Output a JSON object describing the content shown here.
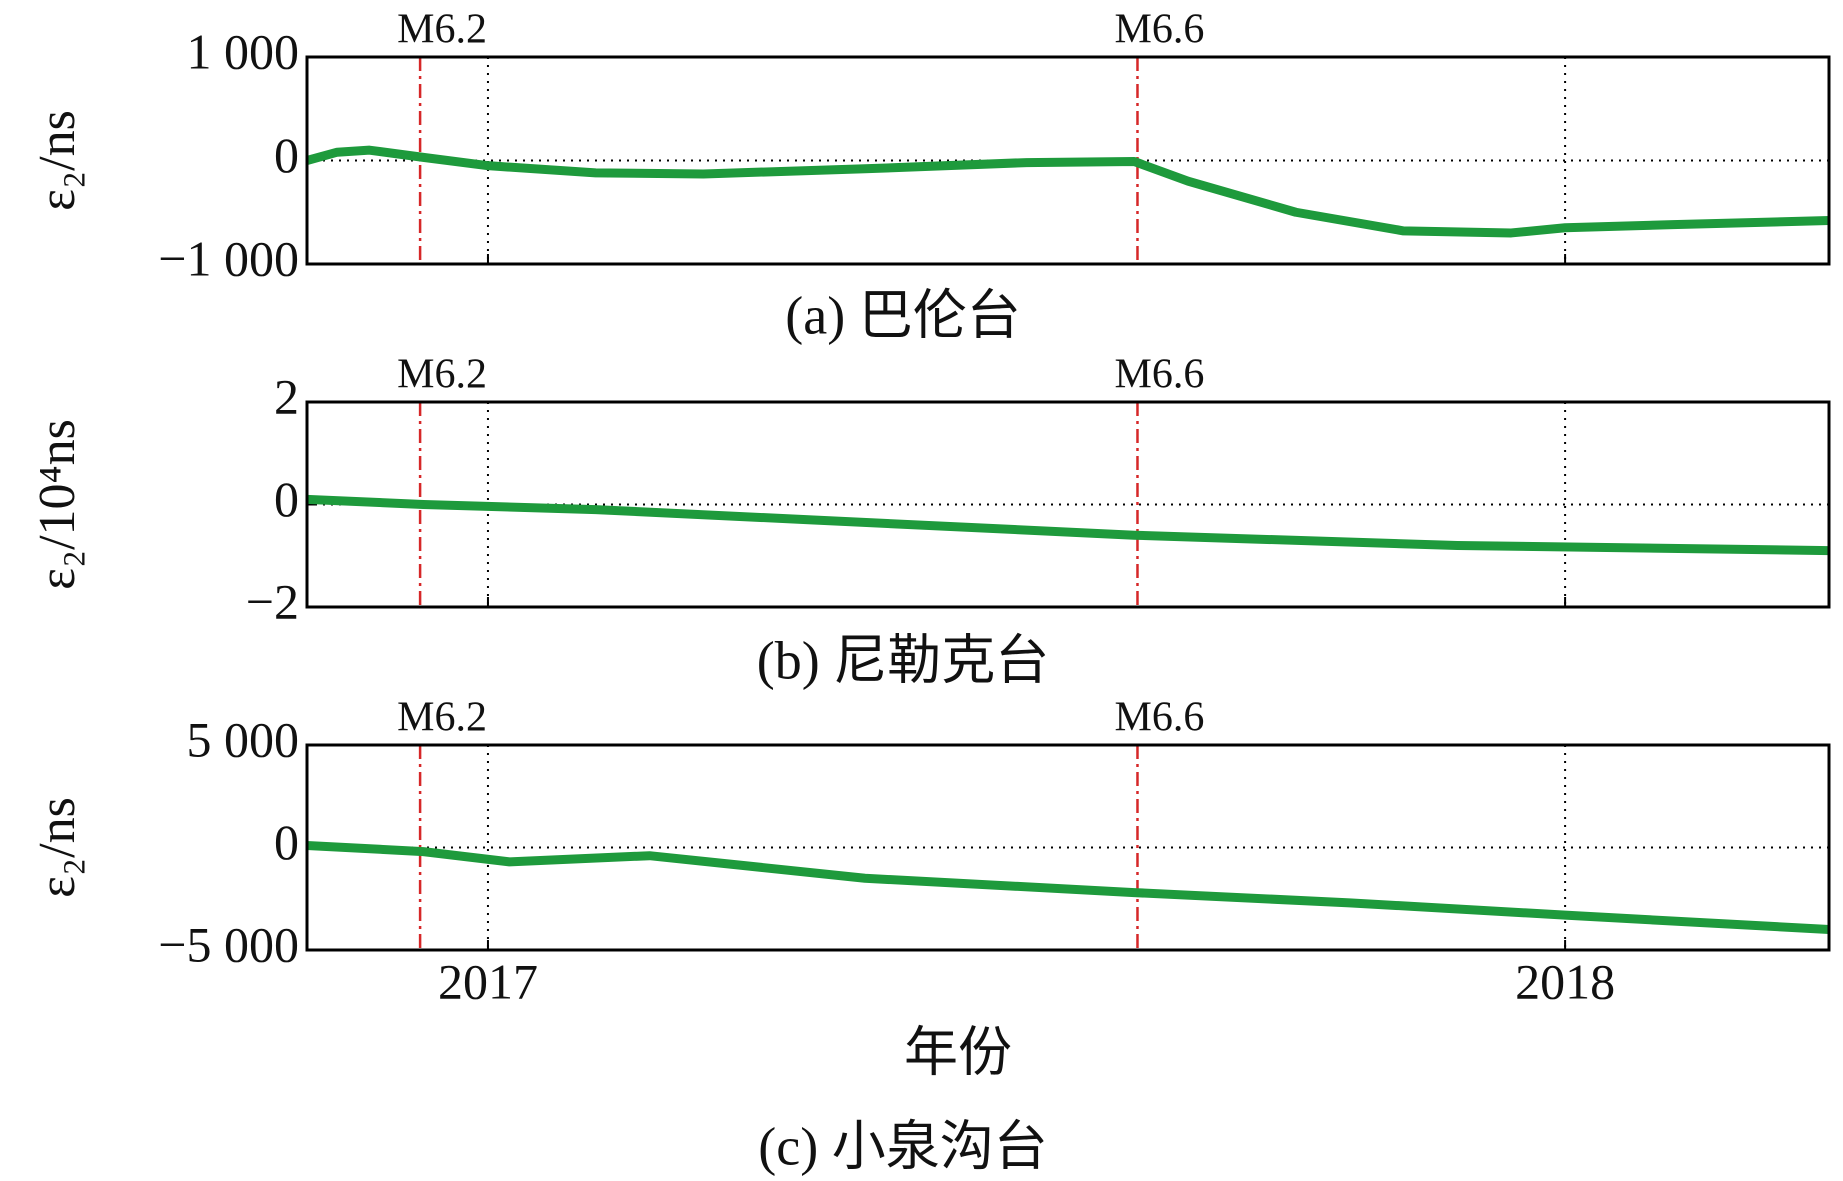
{
  "chart_data": [
    {
      "type": "line",
      "caption": "(a) 巴伦台",
      "ylabel": "ε₂/ns",
      "color": "#1e9a3c",
      "grid": true,
      "show_xtick_labels": false,
      "x": [
        2016.832,
        2016.86,
        2016.89,
        2016.94,
        2017.0,
        2017.1,
        2017.2,
        2017.35,
        2017.5,
        2017.6,
        2017.65,
        2017.75,
        2017.85,
        2017.95,
        2018.0,
        2018.1,
        2018.245
      ],
      "values": [
        0,
        80,
        100,
        30,
        -50,
        -120,
        -130,
        -80,
        -20,
        -10,
        -200,
        -500,
        -680,
        -700,
        -650,
        -620,
        -580
      ],
      "xlim": [
        2016.832,
        2018.245
      ],
      "xticks": [
        2017,
        2018
      ],
      "ylim": [
        -1000,
        1000
      ],
      "yticks": [
        {
          "value": -1000,
          "label": "−1 000"
        },
        0,
        {
          "value": 1000,
          "label": "1 000"
        }
      ],
      "annotations": [
        {
          "x": 2016.937,
          "text": "M6.2"
        },
        {
          "x": 2017.603,
          "text": "M6.6"
        }
      ],
      "annotation_color": "#d62728"
    },
    {
      "type": "line",
      "caption": "(b) 尼勒克台",
      "ylabel": "ε₂/10⁴ns",
      "color": "#1e9a3c",
      "grid": true,
      "show_xtick_labels": false,
      "x": [
        2016.832,
        2016.94,
        2017.1,
        2017.3,
        2017.6,
        2017.9,
        2018.245
      ],
      "values": [
        0.1,
        0,
        -0.1,
        -0.3,
        -0.6,
        -0.8,
        -0.9
      ],
      "xlim": [
        2016.832,
        2018.245
      ],
      "xticks": [
        2017,
        2018
      ],
      "ylim": [
        -2,
        2
      ],
      "yticks": [
        {
          "value": -2,
          "label": "−2"
        },
        0,
        2
      ],
      "annotations": [
        {
          "x": 2016.937,
          "text": "M6.2"
        },
        {
          "x": 2017.603,
          "text": "M6.6"
        }
      ],
      "annotation_color": "#d62728"
    },
    {
      "type": "line",
      "caption": "(c) 小泉沟台",
      "ylabel": "ε₂/ns",
      "xlabel": "年份",
      "color": "#1e9a3c",
      "grid": true,
      "show_xtick_labels": true,
      "x": [
        2016.832,
        2016.94,
        2017.02,
        2017.15,
        2017.35,
        2017.6,
        2017.8,
        2018.0,
        2018.245
      ],
      "values": [
        100,
        -200,
        -700,
        -400,
        -1500,
        -2200,
        -2700,
        -3300,
        -4000
      ],
      "xlim": [
        2016.832,
        2018.245
      ],
      "xticks": [
        2017,
        2018
      ],
      "ylim": [
        -5000,
        5000
      ],
      "yticks": [
        {
          "value": -5000,
          "label": "−5 000"
        },
        0,
        {
          "value": 5000,
          "label": "5 000"
        }
      ],
      "annotations": [
        {
          "x": 2016.937,
          "text": "M6.2"
        },
        {
          "x": 2017.603,
          "text": "M6.6"
        }
      ],
      "annotation_color": "#d62728"
    }
  ]
}
